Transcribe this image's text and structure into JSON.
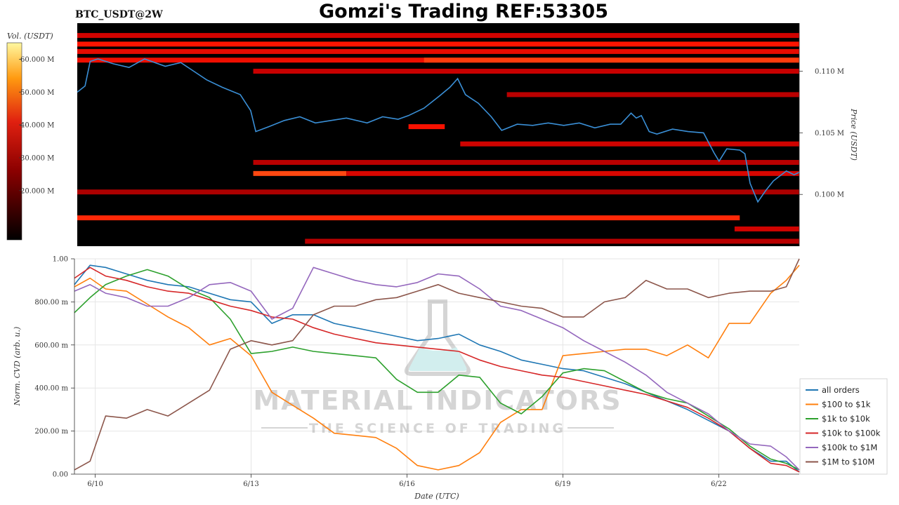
{
  "header": {
    "pair_label": "BTC_USDT@2W",
    "title": "Gomzi's Trading REF:53305"
  },
  "watermark": {
    "line1": "MATERIAL INDICATORS",
    "line2": "THE SCIENCE OF TRADING"
  },
  "colors": {
    "heatmap_background": "#000000",
    "price_line": "#3a8fd6",
    "grid": "#e6e6e6"
  },
  "chart_data": [
    {
      "type": "heatmap",
      "title": "",
      "colorbar": {
        "label": "Vol. (USDT)",
        "ticks": [
          "20.000 M",
          "30.000 M",
          "40.000 M",
          "50.000 M",
          "60.000 M"
        ],
        "tick_values": [
          20,
          30,
          40,
          50,
          60
        ],
        "range": [
          5,
          65
        ],
        "colormap": "black-red-yellow"
      },
      "ylabel": "Price (USDT)",
      "y_ticks": [
        "0.100 M",
        "0.105 M",
        "0.110 M"
      ],
      "y_tick_values": [
        0.1,
        0.105,
        0.11
      ],
      "ylim": [
        0.0958,
        0.1139
      ],
      "xlim_days": [
        9.6,
        23.55
      ],
      "price_series": {
        "name": "",
        "x": [
          9.6,
          9.75,
          9.85,
          10.0,
          10.3,
          10.6,
          10.9,
          11.3,
          11.6,
          11.85,
          12.1,
          12.4,
          12.75,
          12.95,
          13.05,
          13.3,
          13.6,
          13.9,
          14.2,
          14.5,
          14.8,
          15.2,
          15.5,
          15.8,
          16.0,
          16.3,
          16.6,
          16.8,
          16.95,
          17.1,
          17.35,
          17.6,
          17.8,
          18.1,
          18.4,
          18.7,
          19.0,
          19.3,
          19.6,
          19.9,
          20.1,
          20.3,
          20.4,
          20.5,
          20.65,
          20.8,
          21.1,
          21.4,
          21.7,
          21.9,
          22.0,
          22.15,
          22.4,
          22.5,
          22.6,
          22.75,
          22.9,
          23.05,
          23.3,
          23.45,
          23.55
        ],
        "y": [
          0.1083,
          0.1088,
          0.1108,
          0.111,
          0.1106,
          0.1103,
          0.111,
          0.1104,
          0.1107,
          0.11,
          0.1093,
          0.1087,
          0.1081,
          0.1068,
          0.1051,
          0.1055,
          0.106,
          0.1063,
          0.1058,
          0.106,
          0.1062,
          0.1058,
          0.1063,
          0.1061,
          0.1064,
          0.107,
          0.108,
          0.1087,
          0.1094,
          0.1081,
          0.1074,
          0.1063,
          0.1052,
          0.1057,
          0.1056,
          0.1058,
          0.1056,
          0.1058,
          0.1054,
          0.1057,
          0.1057,
          0.1066,
          0.1062,
          0.1064,
          0.1051,
          0.1049,
          0.1053,
          0.1051,
          0.105,
          0.1034,
          0.1027,
          0.1037,
          0.1036,
          0.1033,
          0.1009,
          0.0994,
          0.1003,
          0.1011,
          0.1019,
          0.1016,
          0.1018
        ]
      },
      "liquidity_bands": [
        {
          "price": 0.1129,
          "x0": 9.6,
          "x1": 23.55,
          "level": 0.55
        },
        {
          "price": 0.1122,
          "x0": 9.6,
          "x1": 23.55,
          "level": 0.85
        },
        {
          "price": 0.1116,
          "x0": 9.6,
          "x1": 23.55,
          "level": 0.7
        },
        {
          "price": 0.1109,
          "x0": 9.6,
          "x1": 23.55,
          "level": 0.75
        },
        {
          "price": 0.1109,
          "x0": 16.3,
          "x1": 23.55,
          "level": 0.95
        },
        {
          "price": 0.11,
          "x0": 13.0,
          "x1": 23.55,
          "level": 0.5
        },
        {
          "price": 0.1081,
          "x0": 17.9,
          "x1": 23.55,
          "level": 0.45
        },
        {
          "price": 0.1055,
          "x0": 16.0,
          "x1": 16.7,
          "level": 0.8
        },
        {
          "price": 0.1041,
          "x0": 17.0,
          "x1": 23.55,
          "level": 0.55
        },
        {
          "price": 0.1026,
          "x0": 13.0,
          "x1": 23.55,
          "level": 0.45
        },
        {
          "price": 0.1017,
          "x0": 13.0,
          "x1": 14.8,
          "level": 0.98
        },
        {
          "price": 0.1017,
          "x0": 14.8,
          "x1": 23.55,
          "level": 0.6
        },
        {
          "price": 0.1002,
          "x0": 9.6,
          "x1": 23.55,
          "level": 0.4
        },
        {
          "price": 0.0981,
          "x0": 9.6,
          "x1": 22.4,
          "level": 0.9
        },
        {
          "price": 0.0972,
          "x0": 22.3,
          "x1": 23.55,
          "level": 0.55
        },
        {
          "price": 0.0962,
          "x0": 14.0,
          "x1": 23.55,
          "level": 0.45
        }
      ]
    },
    {
      "type": "line",
      "title": "",
      "xlabel": "Date (UTC)",
      "ylabel": "Norm. CVD (arb. u.)",
      "x_ticks": [
        "6/10",
        "6/13",
        "6/16",
        "6/19",
        "6/22"
      ],
      "x_tick_values": [
        10,
        13,
        16,
        19,
        22
      ],
      "xlim_days": [
        9.6,
        23.55
      ],
      "y_ticks": [
        "0.00",
        "200.00 m",
        "400.00 m",
        "600.00 m",
        "800.00 m",
        "1.00"
      ],
      "y_tick_values": [
        0,
        0.2,
        0.4,
        0.6,
        0.8,
        1.0
      ],
      "ylim": [
        0,
        1.0
      ],
      "grid": true,
      "legend_position": "right",
      "x": [
        9.6,
        9.9,
        10.2,
        10.6,
        11.0,
        11.4,
        11.8,
        12.2,
        12.6,
        13.0,
        13.4,
        13.8,
        14.2,
        14.6,
        15.0,
        15.4,
        15.8,
        16.2,
        16.6,
        17.0,
        17.4,
        17.8,
        18.2,
        18.6,
        19.0,
        19.4,
        19.8,
        20.2,
        20.6,
        21.0,
        21.4,
        21.8,
        22.2,
        22.6,
        23.0,
        23.3,
        23.55
      ],
      "series": [
        {
          "name": "all orders",
          "color": "#1f77b4",
          "values": [
            0.88,
            0.97,
            0.96,
            0.93,
            0.9,
            0.88,
            0.87,
            0.84,
            0.81,
            0.8,
            0.7,
            0.74,
            0.74,
            0.7,
            0.68,
            0.66,
            0.64,
            0.62,
            0.63,
            0.65,
            0.6,
            0.57,
            0.53,
            0.51,
            0.49,
            0.48,
            0.45,
            0.42,
            0.38,
            0.34,
            0.3,
            0.25,
            0.2,
            0.12,
            0.06,
            0.06,
            0.01
          ]
        },
        {
          "name": "$100 to $1k",
          "color": "#ff7f0e",
          "values": [
            0.87,
            0.91,
            0.86,
            0.85,
            0.79,
            0.73,
            0.68,
            0.6,
            0.63,
            0.55,
            0.38,
            0.32,
            0.26,
            0.19,
            0.18,
            0.17,
            0.12,
            0.04,
            0.02,
            0.04,
            0.1,
            0.24,
            0.3,
            0.3,
            0.55,
            0.56,
            0.57,
            0.58,
            0.58,
            0.55,
            0.6,
            0.54,
            0.7,
            0.7,
            0.84,
            0.9,
            0.97
          ]
        },
        {
          "name": "$1k to $10k",
          "color": "#2ca02c",
          "values": [
            0.75,
            0.82,
            0.88,
            0.92,
            0.95,
            0.92,
            0.86,
            0.82,
            0.72,
            0.56,
            0.57,
            0.59,
            0.57,
            0.56,
            0.55,
            0.54,
            0.44,
            0.38,
            0.38,
            0.46,
            0.45,
            0.33,
            0.28,
            0.36,
            0.47,
            0.49,
            0.48,
            0.43,
            0.38,
            0.35,
            0.33,
            0.27,
            0.21,
            0.13,
            0.07,
            0.05,
            0.02
          ]
        },
        {
          "name": "$10k to $100k",
          "color": "#d62728",
          "values": [
            0.91,
            0.96,
            0.92,
            0.9,
            0.87,
            0.85,
            0.84,
            0.81,
            0.78,
            0.76,
            0.73,
            0.72,
            0.68,
            0.65,
            0.63,
            0.61,
            0.6,
            0.59,
            0.58,
            0.57,
            0.53,
            0.5,
            0.48,
            0.46,
            0.45,
            0.43,
            0.41,
            0.39,
            0.37,
            0.34,
            0.31,
            0.26,
            0.2,
            0.12,
            0.05,
            0.04,
            0.01
          ]
        },
        {
          "name": "$100k to $1M",
          "color": "#9467bd",
          "values": [
            0.85,
            0.88,
            0.84,
            0.82,
            0.78,
            0.78,
            0.82,
            0.88,
            0.89,
            0.85,
            0.72,
            0.77,
            0.96,
            0.93,
            0.9,
            0.88,
            0.87,
            0.89,
            0.93,
            0.92,
            0.86,
            0.78,
            0.76,
            0.72,
            0.68,
            0.62,
            0.57,
            0.52,
            0.46,
            0.38,
            0.33,
            0.28,
            0.2,
            0.14,
            0.13,
            0.08,
            0.02
          ]
        },
        {
          "name": "$1M to $10M",
          "color": "#8c564b",
          "values": [
            0.02,
            0.06,
            0.27,
            0.26,
            0.3,
            0.27,
            0.33,
            0.39,
            0.58,
            0.62,
            0.6,
            0.62,
            0.74,
            0.78,
            0.78,
            0.81,
            0.82,
            0.85,
            0.88,
            0.84,
            0.82,
            0.8,
            0.78,
            0.77,
            0.73,
            0.73,
            0.8,
            0.82,
            0.9,
            0.86,
            0.86,
            0.82,
            0.84,
            0.85,
            0.85,
            0.87,
            1.0
          ]
        }
      ]
    }
  ]
}
